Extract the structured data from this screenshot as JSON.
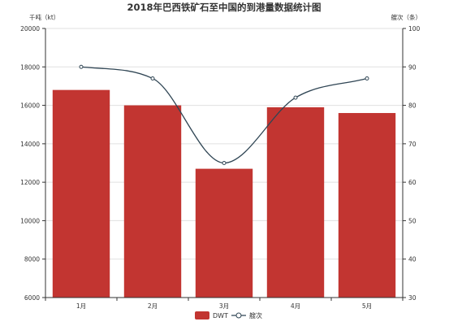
{
  "chart_data": {
    "type": "bar",
    "title": "2018年巴西铁矿石至中国的到港量数据统计图",
    "categories": [
      "1月",
      "2月",
      "3月",
      "4月",
      "5月"
    ],
    "series": [
      {
        "name": "DWT",
        "type": "bar",
        "axis": "left",
        "color": "#c23531",
        "values": [
          16800,
          16000,
          12700,
          15900,
          15600
        ]
      },
      {
        "name": "艘次",
        "type": "line",
        "axis": "right",
        "color": "#2f4554",
        "smooth": true,
        "values": [
          90,
          87,
          65,
          82,
          87
        ]
      }
    ],
    "y_left": {
      "label": "千吨（kt）",
      "min": 6000,
      "max": 20000,
      "step": 2000
    },
    "y_right": {
      "label": "艘次（条）",
      "min": 30,
      "max": 100,
      "step": 10
    },
    "grid": true,
    "legend_position": "bottom-center"
  }
}
